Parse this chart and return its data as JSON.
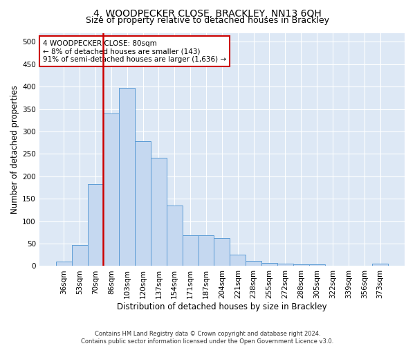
{
  "title": "4, WOODPECKER CLOSE, BRACKLEY, NN13 6QH",
  "subtitle": "Size of property relative to detached houses in Brackley",
  "xlabel": "Distribution of detached houses by size in Brackley",
  "ylabel": "Number of detached properties",
  "categories": [
    "36sqm",
    "53sqm",
    "70sqm",
    "86sqm",
    "103sqm",
    "120sqm",
    "137sqm",
    "154sqm",
    "171sqm",
    "187sqm",
    "204sqm",
    "221sqm",
    "238sqm",
    "255sqm",
    "272sqm",
    "288sqm",
    "305sqm",
    "322sqm",
    "339sqm",
    "356sqm",
    "373sqm"
  ],
  "bar_values": [
    10,
    47,
    183,
    340,
    397,
    278,
    241,
    135,
    68,
    68,
    62,
    26,
    12,
    7,
    5,
    4,
    4,
    0,
    0,
    0,
    5
  ],
  "bar_color": "#c5d8f0",
  "bar_edge_color": "#5b9bd5",
  "vline_x": 2.5,
  "vline_color": "#cc0000",
  "annotation_text": "4 WOODPECKER CLOSE: 80sqm\n← 8% of detached houses are smaller (143)\n91% of semi-detached houses are larger (1,636) →",
  "annotation_box_color": "#cc0000",
  "ylim": [
    0,
    520
  ],
  "yticks": [
    0,
    50,
    100,
    150,
    200,
    250,
    300,
    350,
    400,
    450,
    500
  ],
  "background_color": "#ffffff",
  "plot_bg_color": "#dde8f5",
  "grid_color": "#ffffff",
  "footer": "Contains HM Land Registry data © Crown copyright and database right 2024.\nContains public sector information licensed under the Open Government Licence v3.0.",
  "title_fontsize": 10,
  "subtitle_fontsize": 9,
  "xlabel_fontsize": 8.5,
  "ylabel_fontsize": 8.5,
  "tick_fontsize": 7.5,
  "annot_fontsize": 7.5,
  "footer_fontsize": 6
}
